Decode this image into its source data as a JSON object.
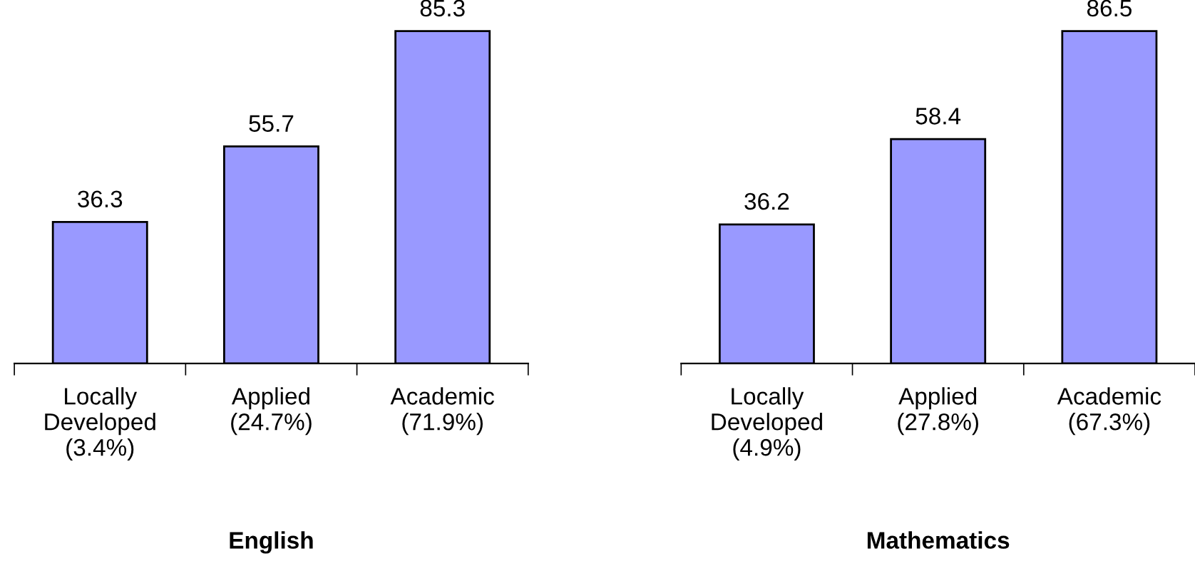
{
  "chart_data": [
    {
      "type": "bar",
      "title": "English",
      "categories": [
        "Locally\nDeveloped\n(3.4%)",
        "Applied\n(24.7%)",
        "Academic\n(71.9%)"
      ],
      "values": [
        36.3,
        55.7,
        85.3
      ],
      "color": "#9999ff",
      "data_labels": true,
      "grid": false,
      "legend": false,
      "tick_labels": "x"
    },
    {
      "type": "bar",
      "title": "Mathematics",
      "categories": [
        "Locally\nDeveloped\n(4.9%)",
        "Applied\n(27.8%)",
        "Academic\n(67.3%)"
      ],
      "values": [
        36.2,
        58.4,
        86.5
      ],
      "color": "#9999ff",
      "data_labels": true,
      "grid": false,
      "legend": false,
      "tick_labels": "x"
    }
  ]
}
